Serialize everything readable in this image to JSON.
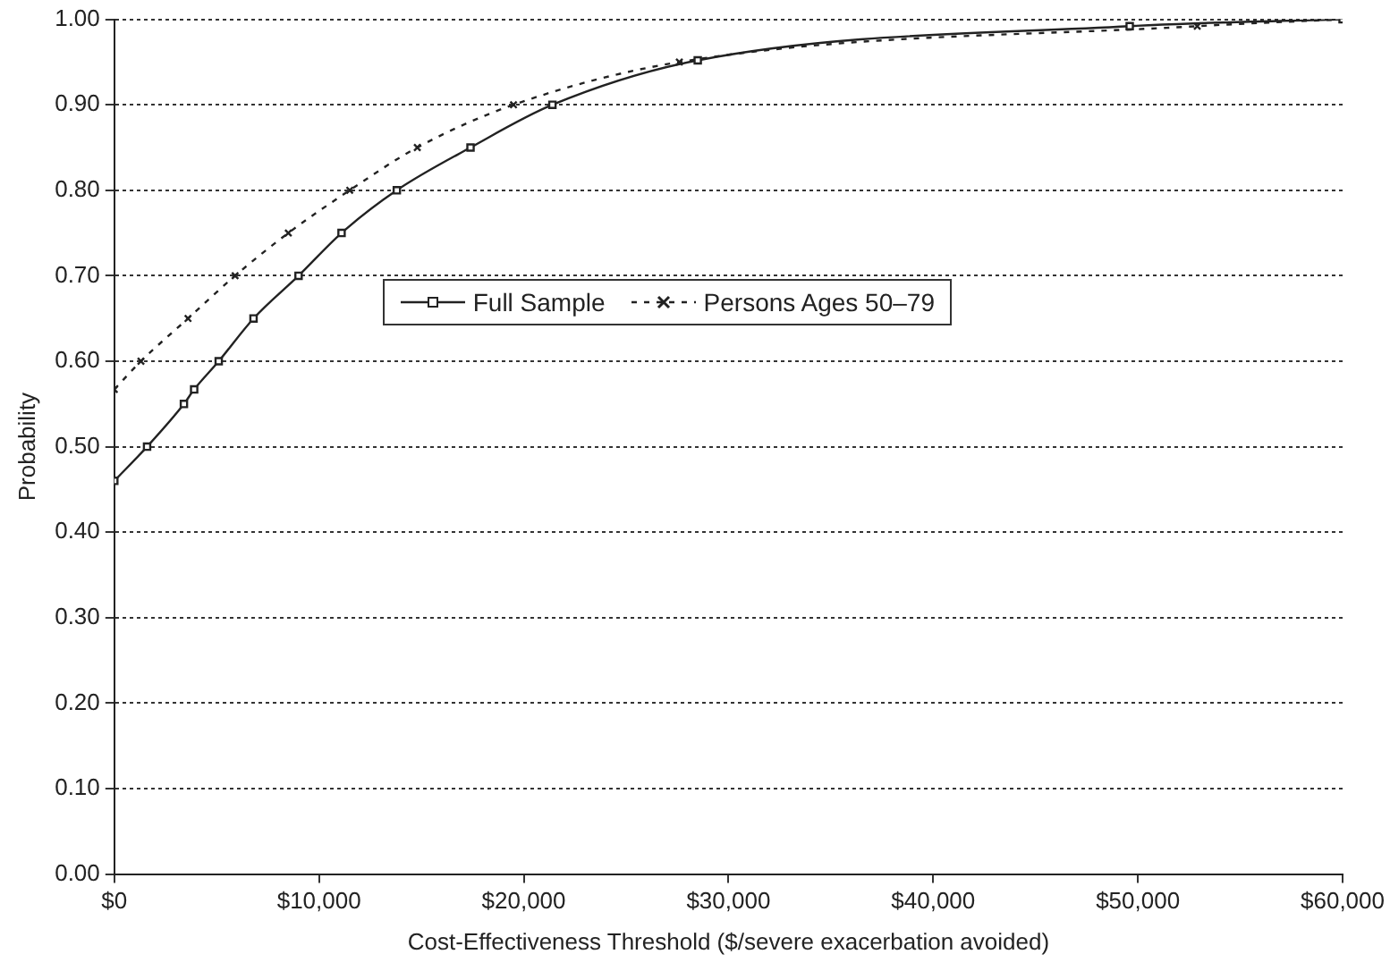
{
  "chart_data": {
    "type": "line",
    "xlabel": "Cost-Effectiveness Threshold ($/severe exacerbation avoided)",
    "ylabel": "Probability",
    "xlim": [
      0,
      60000
    ],
    "xticks": [
      {
        "value": 0,
        "label": "$0"
      },
      {
        "value": 10000,
        "label": "$10,000"
      },
      {
        "value": 20000,
        "label": "$20,000"
      },
      {
        "value": 30000,
        "label": "$30,000"
      },
      {
        "value": 40000,
        "label": "$40,000"
      },
      {
        "value": 50000,
        "label": "$50,000"
      },
      {
        "value": 60000,
        "label": "$60,000"
      }
    ],
    "ylim": [
      0,
      1
    ],
    "yticks": [
      {
        "value": 0,
        "label": "0.00"
      },
      {
        "value": 0.1,
        "label": "0.10"
      },
      {
        "value": 0.2,
        "label": "0.20"
      },
      {
        "value": 0.3,
        "label": "0.30"
      },
      {
        "value": 0.4,
        "label": "0.40"
      },
      {
        "value": 0.5,
        "label": "0.50"
      },
      {
        "value": 0.6,
        "label": "0.60"
      },
      {
        "value": 0.7,
        "label": "0.70"
      },
      {
        "value": 0.8,
        "label": "0.80"
      },
      {
        "value": 0.9,
        "label": "0.90"
      },
      {
        "value": 1,
        "label": "1.00"
      }
    ],
    "grid": "y",
    "legend": "center",
    "series": [
      {
        "name": "Full Sample",
        "color": "#222222",
        "marker": "square",
        "line_style": "solid",
        "x": [
          0,
          1600,
          3400,
          3900,
          5100,
          6800,
          9000,
          11100,
          13800,
          17400,
          21400,
          28500,
          49600,
          60000
        ],
        "values": [
          0.46,
          0.5,
          0.55,
          0.567,
          0.6,
          0.65,
          0.7,
          0.75,
          0.8,
          0.85,
          0.9,
          0.952,
          0.992,
          1.0
        ]
      },
      {
        "name": "Persons Ages 50–79",
        "color": "#222222",
        "marker": "cross",
        "line_style": "dotted",
        "x": [
          0,
          1300,
          3600,
          5900,
          8500,
          11500,
          14800,
          19500,
          27600,
          52900,
          60000
        ],
        "values": [
          0.567,
          0.6,
          0.65,
          0.7,
          0.75,
          0.8,
          0.85,
          0.9,
          0.95,
          0.992,
          1.0
        ]
      }
    ]
  }
}
